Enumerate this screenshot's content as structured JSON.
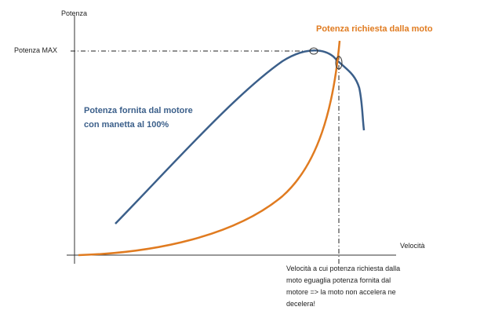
{
  "axes": {
    "y_label": "Potenza",
    "y_max_label": "Potenza MAX",
    "x_label": "Velocità"
  },
  "curves": {
    "demand_label": "Potenza richiesta dalla moto",
    "supply_label": [
      "Potenza fornita dal motore",
      "con manetta al 100%"
    ]
  },
  "note": [
    "Velocità a cui potenza richiesta dalla",
    "moto eguaglia potenza fornita dal",
    "motore => la moto non accelera ne",
    "decelera!"
  ]
}
